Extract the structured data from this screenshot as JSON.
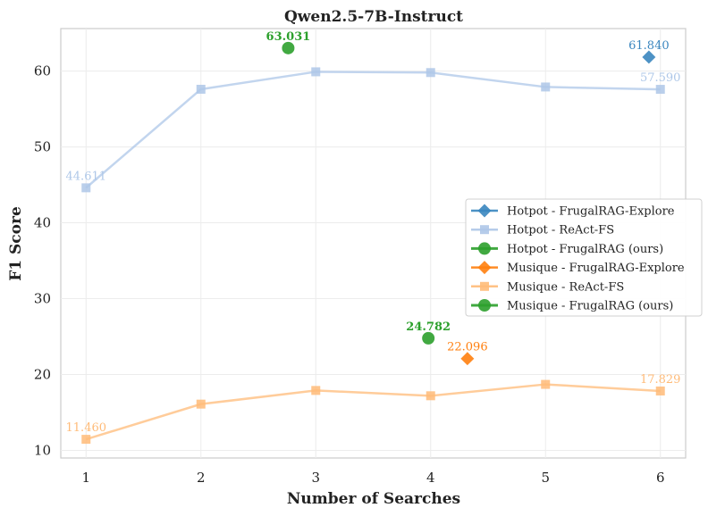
{
  "chart_data": {
    "type": "line",
    "title": "Qwen2.5-7B-Instruct",
    "xlabel": "Number of Searches",
    "ylabel": "F1 Score",
    "xlim": [
      0.78,
      6.22
    ],
    "ylim": [
      9,
      65.6
    ],
    "xticks": [
      1,
      2,
      3,
      4,
      5,
      6
    ],
    "yticks": [
      10,
      20,
      30,
      40,
      50,
      60
    ],
    "grid": true,
    "legend_position": "center-right",
    "series": [
      {
        "name": "Hotpot - FrugalRAG-Explore",
        "kind": "point",
        "marker": "diamond",
        "color": "#3a86bf",
        "points": [
          {
            "x": 5.9,
            "y": 61.84,
            "label": "61.840",
            "bold": false
          }
        ]
      },
      {
        "name": "Hotpot - ReAct-FS",
        "kind": "line",
        "marker": "square",
        "color": "#aec7e8",
        "x": [
          1,
          2,
          3,
          4,
          5,
          6
        ],
        "y": [
          44.611,
          57.6,
          59.9,
          59.8,
          57.9,
          57.59
        ],
        "labels": [
          {
            "i": 0,
            "text": "44.611"
          },
          {
            "i": 5,
            "text": "57.590"
          }
        ]
      },
      {
        "name": "Hotpot - FrugalRAG (ours)",
        "kind": "point",
        "marker": "circle",
        "color": "#2ca02c",
        "points": [
          {
            "x": 2.76,
            "y": 63.031,
            "label": "63.031",
            "bold": true
          }
        ]
      },
      {
        "name": "Musique - FrugalRAG-Explore",
        "kind": "point",
        "marker": "diamond",
        "color": "#ff7f0e",
        "points": [
          {
            "x": 4.32,
            "y": 22.096,
            "label": "22.096",
            "bold": false
          }
        ]
      },
      {
        "name": "Musique - ReAct-FS",
        "kind": "line",
        "marker": "square",
        "color": "#ffbb78",
        "x": [
          1,
          2,
          3,
          4,
          5,
          6
        ],
        "y": [
          11.46,
          16.1,
          17.9,
          17.2,
          18.7,
          17.829
        ],
        "labels": [
          {
            "i": 0,
            "text": "11.460"
          },
          {
            "i": 5,
            "text": "17.829"
          }
        ]
      },
      {
        "name": "Musique - FrugalRAG (ours)",
        "kind": "point",
        "marker": "circle",
        "color": "#2ca02c",
        "points": [
          {
            "x": 3.98,
            "y": 24.782,
            "label": "24.782",
            "bold": true
          }
        ]
      }
    ]
  }
}
